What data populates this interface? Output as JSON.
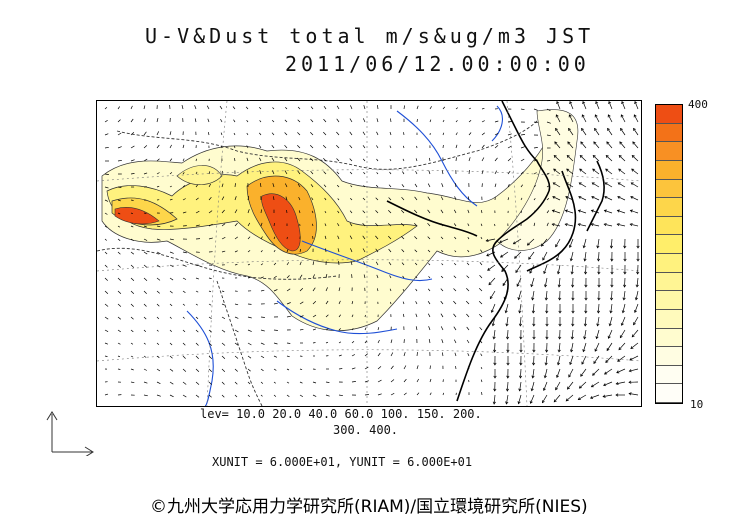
{
  "header": {
    "title": "U-V&Dust total m/s&ug/m3 JST",
    "datetime": "2011/06/12.00:00:00"
  },
  "legend": {
    "max_label": "400",
    "min_label": "10",
    "colors": [
      "#ee4e14",
      "#f37218",
      "#f89023",
      "#fab12c",
      "#fcc43c",
      "#fdd64a",
      "#fee45a",
      "#ffee6a",
      "#fff27e",
      "#fff594",
      "#fff8a8",
      "#fffabc",
      "#fffccf",
      "#fffde2",
      "#fffef2",
      "#fffef8"
    ]
  },
  "levels": {
    "line1": "lev= 10.0 20.0 40.0 60.0 100. 150. 200.",
    "line2": "300. 400."
  },
  "units": "XUNIT = 6.000E+01, YUNIT = 6.000E+01",
  "copyright": "©九州大学応用力学研究所(RIAM)/国立環境研究所(NIES)"
}
